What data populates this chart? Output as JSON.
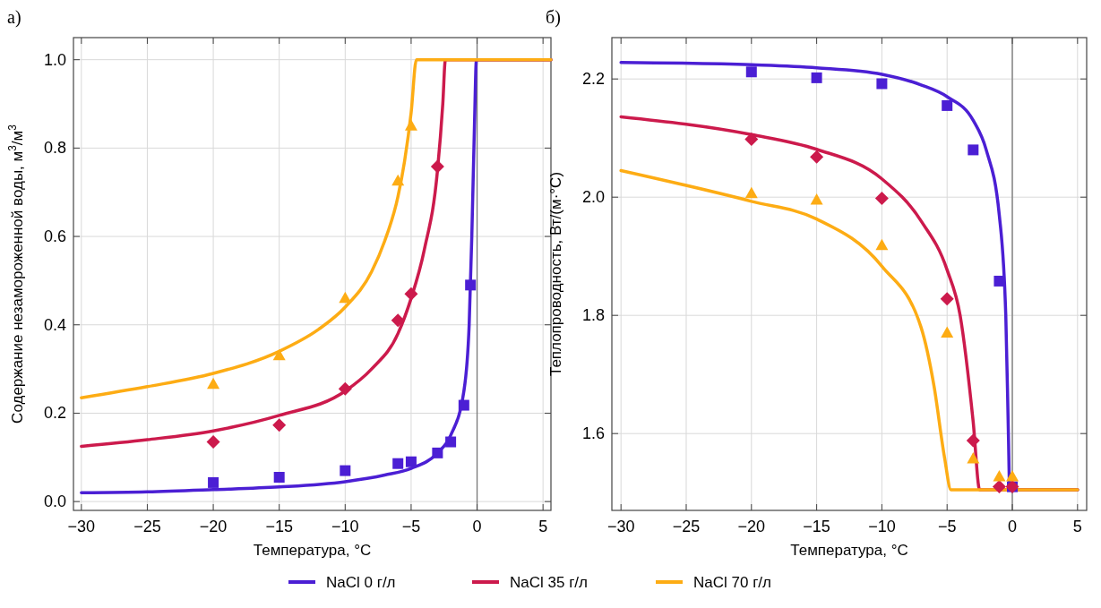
{
  "chart_data": [
    {
      "type": "line",
      "title": "а)",
      "xlabel": "Температура, °C",
      "ylabel": "Содержание незамороженной воды, м$^{3}$/м$^{3}$",
      "xlim": [
        -30.6,
        5.6
      ],
      "ylim": [
        -0.02,
        1.05
      ],
      "xticks": [
        {
          "value": -30,
          "label": "−30"
        },
        {
          "value": -25,
          "label": "−25"
        },
        {
          "value": -20,
          "label": "−20"
        },
        {
          "value": -15,
          "label": "−15"
        },
        {
          "value": -10,
          "label": "−10"
        },
        {
          "value": -5,
          "label": "−5"
        },
        {
          "value": 0,
          "label": "0"
        },
        {
          "value": 5,
          "label": "5"
        }
      ],
      "yticks": [
        {
          "value": 0,
          "label": "0.0"
        },
        0.2,
        0.4,
        0.6,
        0.8,
        {
          "value": 1,
          "label": "1.0"
        }
      ],
      "grid": true,
      "legend": "bottom",
      "ref_lines": [
        {
          "axis": "x",
          "value": 0,
          "color": "#777777"
        }
      ],
      "series": [
        {
          "name": "NaCl 0 г/л",
          "type": "line",
          "marker": "none",
          "color": "#4b1fd4",
          "x": [
            -30,
            -25,
            -20,
            -15,
            -10,
            -7,
            -5,
            -3,
            -2,
            -1,
            -0.6,
            -0.4,
            -0.2,
            -0.05,
            5.6
          ],
          "values": [
            0.02,
            0.022,
            0.027,
            0.033,
            0.045,
            0.06,
            0.075,
            0.11,
            0.15,
            0.25,
            0.4,
            0.6,
            0.85,
            1.0,
            1.0
          ]
        },
        {
          "name": "NaCl 35 г/л",
          "type": "line",
          "marker": "none",
          "color": "#cc1a4c",
          "x": [
            -30,
            -25,
            -20,
            -15,
            -10,
            -8,
            -6,
            -5,
            -4,
            -3,
            -2.6,
            -2.4,
            5.6
          ],
          "values": [
            0.125,
            0.14,
            0.16,
            0.195,
            0.25,
            0.3,
            0.38,
            0.46,
            0.57,
            0.75,
            0.9,
            1.0,
            1.0
          ]
        },
        {
          "name": "NaCl 70 г/л",
          "type": "line",
          "marker": "none",
          "color": "#fdac14",
          "x": [
            -30,
            -25,
            -20,
            -15,
            -12,
            -10,
            -8,
            -7,
            -6,
            -5.5,
            -5,
            -4.6,
            5.6
          ],
          "values": [
            0.235,
            0.26,
            0.29,
            0.34,
            0.39,
            0.44,
            0.52,
            0.59,
            0.69,
            0.77,
            0.88,
            1.0,
            1.0
          ]
        },
        {
          "type": "scatter",
          "marker": "square",
          "color": "#4b1fd4",
          "x": [
            -20,
            -15,
            -10,
            -6,
            -5,
            -3,
            -2,
            -1,
            -0.5
          ],
          "values": [
            0.043,
            0.055,
            0.07,
            0.086,
            0.09,
            0.11,
            0.135,
            0.218,
            0.49
          ]
        },
        {
          "type": "scatter",
          "marker": "diamond",
          "color": "#cc1a4c",
          "x": [
            -20,
            -15,
            -10,
            -6,
            -5,
            -3
          ],
          "values": [
            0.135,
            0.173,
            0.255,
            0.41,
            0.47,
            0.758
          ]
        },
        {
          "type": "scatter",
          "marker": "triangle",
          "color": "#fdac14",
          "x": [
            -20,
            -15,
            -10,
            -6,
            -5
          ],
          "values": [
            0.265,
            0.33,
            0.46,
            0.725,
            0.85
          ]
        }
      ]
    },
    {
      "type": "line",
      "title": "б)",
      "xlabel": "Температура, °C",
      "ylabel": "Теплопроводность, Вт/(м·°C)",
      "xlim": [
        -30.7,
        5.7
      ],
      "ylim": [
        1.47,
        2.27
      ],
      "xticks": [
        {
          "value": -30,
          "label": "−30"
        },
        {
          "value": -25,
          "label": "−25"
        },
        {
          "value": -20,
          "label": "−20"
        },
        {
          "value": -15,
          "label": "−15"
        },
        {
          "value": -10,
          "label": "−10"
        },
        {
          "value": -5,
          "label": "−5"
        },
        {
          "value": 0,
          "label": "0"
        },
        {
          "value": 5,
          "label": "5"
        }
      ],
      "yticks": [
        1.6,
        1.8,
        {
          "value": 2,
          "label": "2.0"
        },
        2.2
      ],
      "grid": true,
      "ref_lines": [
        {
          "axis": "x",
          "value": 0,
          "color": "#777777"
        }
      ],
      "series": [
        {
          "type": "line",
          "marker": "none",
          "color": "#4b1fd4",
          "x": [
            -30,
            -20,
            -15,
            -10,
            -7,
            -5,
            -3,
            -2,
            -1,
            -0.5,
            -0.3,
            -0.2,
            5
          ],
          "values": [
            2.228,
            2.224,
            2.219,
            2.208,
            2.19,
            2.17,
            2.13,
            2.08,
            1.97,
            1.8,
            1.6,
            1.505,
            1.505
          ]
        },
        {
          "type": "line",
          "marker": "none",
          "color": "#cc1a4c",
          "x": [
            -30,
            -20,
            -15,
            -10,
            -7,
            -5,
            -4,
            -3,
            -2.5,
            5
          ],
          "values": [
            2.136,
            2.106,
            2.081,
            2.031,
            1.96,
            1.877,
            1.8,
            1.62,
            1.505,
            1.505
          ]
        },
        {
          "type": "line",
          "marker": "none",
          "color": "#fdac14",
          "x": [
            -30,
            -20,
            -15,
            -10,
            -7,
            -6,
            -5.2,
            -4.7,
            5
          ],
          "values": [
            2.045,
            1.993,
            1.963,
            1.883,
            1.78,
            1.68,
            1.56,
            1.505,
            1.505
          ]
        },
        {
          "type": "scatter",
          "marker": "square",
          "color": "#4b1fd4",
          "x": [
            -20,
            -15,
            -10,
            -5,
            -3,
            -1,
            0
          ],
          "values": [
            2.212,
            2.202,
            2.192,
            2.155,
            2.08,
            1.858,
            1.51
          ]
        },
        {
          "type": "scatter",
          "marker": "diamond",
          "color": "#cc1a4c",
          "x": [
            -20,
            -15,
            -10,
            -5,
            -3,
            -1,
            0
          ],
          "values": [
            2.098,
            2.068,
            1.998,
            1.828,
            1.588,
            1.51,
            1.51
          ]
        },
        {
          "type": "scatter",
          "marker": "triangle",
          "color": "#fdac14",
          "x": [
            -20,
            -15,
            -10,
            -5,
            -3,
            -1,
            0
          ],
          "values": [
            2.006,
            1.995,
            1.918,
            1.77,
            1.557,
            1.527,
            1.527
          ]
        }
      ]
    }
  ]
}
